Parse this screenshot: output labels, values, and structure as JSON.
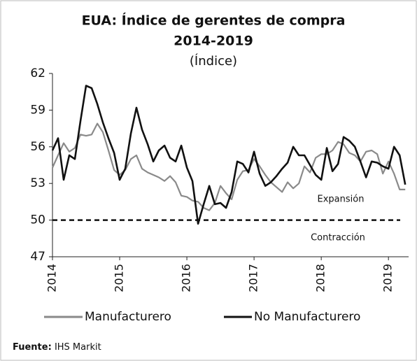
{
  "chart_data": {
    "type": "line",
    "title": "EUA: Índice de gerentes de compra",
    "subtitle": "2014-2019",
    "unit_label": "(Índice)",
    "x": [
      2014,
      2014.083,
      2014.167,
      2014.25,
      2014.333,
      2014.417,
      2014.5,
      2014.583,
      2014.667,
      2014.75,
      2014.833,
      2014.917,
      2015,
      2015.083,
      2015.167,
      2015.25,
      2015.333,
      2015.417,
      2015.5,
      2015.583,
      2015.667,
      2015.75,
      2015.833,
      2015.917,
      2016,
      2016.083,
      2016.167,
      2016.25,
      2016.333,
      2016.417,
      2016.5,
      2016.583,
      2016.667,
      2016.75,
      2016.833,
      2016.917,
      2017,
      2017.083,
      2017.167,
      2017.25,
      2017.333,
      2017.417,
      2017.5,
      2017.583,
      2017.667,
      2017.75,
      2017.833,
      2017.917,
      2018,
      2018.083,
      2018.167,
      2018.25,
      2018.333,
      2018.417,
      2018.5,
      2018.583,
      2018.667,
      2018.75,
      2018.833,
      2018.917,
      2019,
      2019.083,
      2019.167,
      2019.25
    ],
    "series": [
      {
        "name": "Manufacturero",
        "color": "#8a8a8a",
        "values": [
          54.3,
          55.3,
          56.3,
          55.6,
          55.9,
          57.0,
          56.9,
          57.0,
          57.9,
          57.2,
          55.7,
          54.1,
          53.7,
          54.1,
          55.0,
          55.3,
          54.2,
          53.9,
          53.7,
          53.5,
          53.2,
          53.6,
          53.1,
          52.0,
          51.9,
          51.6,
          51.5,
          51.0,
          50.8,
          51.4,
          52.8,
          52.2,
          51.7,
          53.3,
          54.0,
          54.1,
          55.0,
          54.4,
          53.7,
          53.1,
          52.7,
          52.3,
          53.1,
          52.6,
          53.0,
          54.4,
          53.9,
          55.1,
          55.4,
          55.4,
          55.7,
          56.4,
          56.2,
          55.5,
          55.3,
          54.8,
          55.6,
          55.7,
          55.4,
          53.8,
          54.8,
          53.8,
          52.5,
          52.5
        ]
      },
      {
        "name": "No Manufacturero",
        "color": "#111111",
        "values": [
          55.7,
          56.7,
          53.3,
          55.3,
          55.0,
          58.1,
          61.0,
          60.8,
          59.5,
          58.0,
          56.7,
          55.5,
          53.3,
          54.2,
          57.1,
          59.2,
          57.4,
          56.2,
          54.8,
          55.7,
          56.1,
          55.1,
          54.8,
          56.1,
          54.3,
          53.2,
          49.7,
          51.3,
          52.8,
          51.3,
          51.4,
          51.0,
          52.3,
          54.8,
          54.6,
          53.9,
          55.6,
          53.8,
          52.8,
          53.1,
          53.6,
          54.2,
          54.7,
          56.0,
          55.3,
          55.3,
          54.5,
          53.7,
          53.3,
          55.9,
          54.0,
          54.6,
          56.8,
          56.5,
          56.0,
          54.8,
          53.5,
          54.8,
          54.7,
          54.4,
          54.2,
          56.0,
          55.3,
          52.9
        ]
      }
    ],
    "xlim": [
      2014,
      2019.3
    ],
    "xticks": [
      2014,
      2015,
      2016,
      2017,
      2018,
      2019
    ],
    "ylim": [
      47,
      62
    ],
    "yticks": [
      47,
      50,
      53,
      56,
      59,
      62
    ],
    "threshold": 50,
    "annotations": [
      "Expansión",
      "Contracción"
    ],
    "source_label": "Fuente:",
    "source": "IHS Markit"
  }
}
